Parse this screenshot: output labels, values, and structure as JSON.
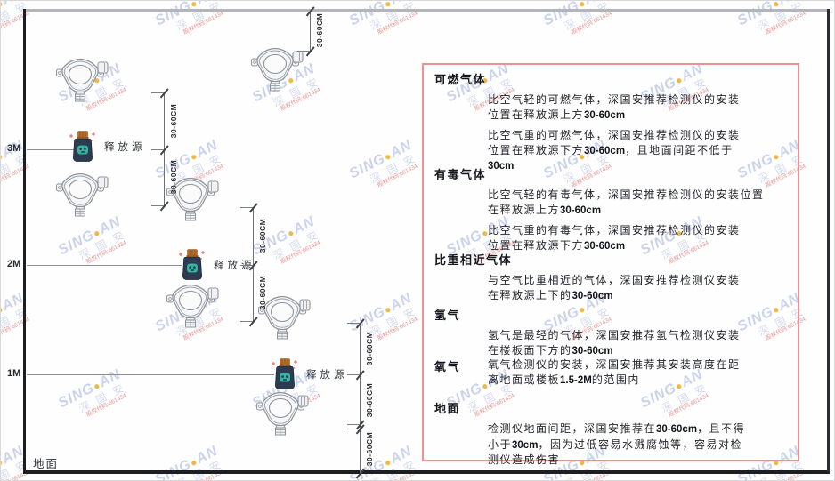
{
  "watermark": {
    "brand_left": "SING",
    "brand_dot": "●",
    "brand_right": "AN",
    "brand_cn": "深 国 安",
    "stock_line": "股权代码:661434"
  },
  "diagram": {
    "height_labels": [
      "3M",
      "2M",
      "1M"
    ],
    "ground_label": "地面",
    "release_source_label": "释放源",
    "dimension_label": "30-60CM"
  },
  "panel": {
    "sections": [
      {
        "heading": "可燃气体",
        "paragraphs": [
          [
            "比空气轻的可燃气体，深国安推荐检测仪的安装",
            "位置在释放源上方30-60cm"
          ],
          [
            "比空气重的可燃气体，深国安推荐检测仪的安装",
            "位置在释放源下方30-60cm，且地面间距不低于",
            "30cm"
          ]
        ]
      },
      {
        "heading": "有毒气体",
        "paragraphs": [
          [
            "比空气轻的有毒气体，深国安推荐检测仪的安装位置",
            "在释放源上方30-60cm"
          ],
          [
            "比空气重的有毒气体，深国安推荐检测仪的安装",
            "位置在释放源下方30-60cm"
          ]
        ]
      },
      {
        "heading": "比重相近气体",
        "paragraphs": [
          [
            "与空气比重相近的气体，深国安推荐检测仪安装",
            "在释放源上下的30-60cm"
          ]
        ]
      },
      {
        "heading": "氢气",
        "paragraphs": [
          [
            "氢气是最轻的气体，深国安推荐氢气检测仪安装",
            "在楼板面下方的30-60cm"
          ]
        ]
      },
      {
        "heading": "氧气",
        "inline": true,
        "paragraphs": [
          [
            "氧气检测仪的安装，深国安推荐其安装高度在距",
            "离地面或楼板1.5-2M的范围内"
          ]
        ]
      },
      {
        "heading": "地面",
        "paragraphs": [
          [
            "检测仪地面间距，深国安推荐在30-60cm，且不得",
            "小于30cm，因为过低容易水溅腐蚀等，容易对检",
            "测仪造成伤害"
          ]
        ]
      }
    ]
  },
  "colors": {
    "panel_border": "#f29090",
    "wall": "#1c1e22",
    "ceiling": "#b2b5ba",
    "bottle_navy": "#2c3b4f",
    "bottle_cap": "#b5702f",
    "bottle_teal": "#35b2a1",
    "sparkle_red": "#e05c5c",
    "detector_stroke": "#8e949c",
    "watermark_blue": "#7a8fcc",
    "watermark_red": "#d63a3a"
  }
}
